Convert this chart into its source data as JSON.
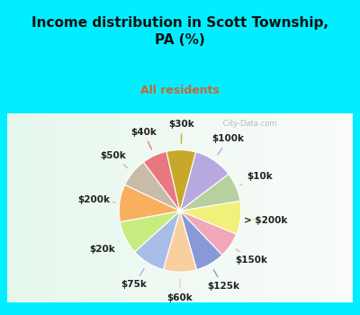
{
  "title": "Income distribution in Scott Township,\nPA (%)",
  "subtitle": "All residents",
  "bg_cyan": "#00EEFF",
  "bg_chart_color1": "#e8f5ee",
  "bg_chart_color2": "#f5faf7",
  "labels": [
    "$100k",
    "$10k",
    "> $200k",
    "$150k",
    "$125k",
    "$60k",
    "$75k",
    "$20k",
    "$200k",
    "$50k",
    "$40k",
    "$30k"
  ],
  "values": [
    9.5,
    7,
    8,
    6,
    7,
    8,
    8,
    8,
    9,
    7,
    6,
    7
  ],
  "colors": [
    "#b8a8e0",
    "#b8d0a0",
    "#f0f07a",
    "#f0a8b8",
    "#8898d8",
    "#f8d0a0",
    "#a8bce8",
    "#c8ec80",
    "#f8b060",
    "#c8bca8",
    "#e87880",
    "#c8a828"
  ],
  "watermark": " City-Data.com",
  "label_fontsize": 7.5,
  "title_fontsize": 11,
  "subtitle_fontsize": 9,
  "subtitle_color": "#cc6633"
}
